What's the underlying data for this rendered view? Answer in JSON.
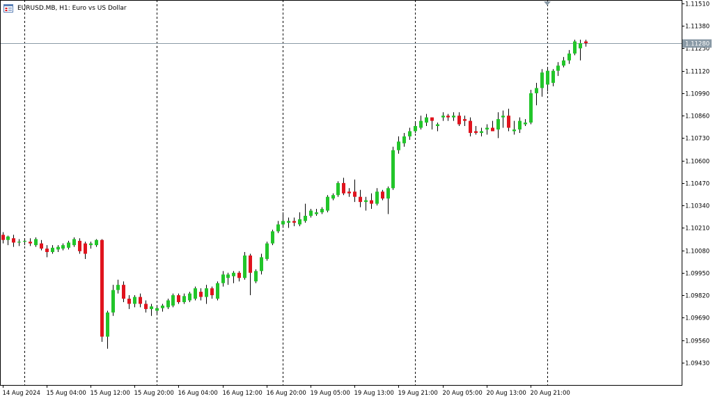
{
  "window": {
    "symbol_title": "EURUSD.MB, H1:  Euro vs US Dollar",
    "icon": "chart-window-icon"
  },
  "colors": {
    "background": "#ffffff",
    "bull": "#22c52a",
    "bear": "#e0141e",
    "grid_separator": "#000000",
    "price_line": "#8a9aa6",
    "price_label_bg": "#8a9aa6",
    "price_label_text": "#ffffff",
    "axis_text": "#000000"
  },
  "chart_data": {
    "type": "candlestick",
    "symbol": "EURUSD.MB",
    "timeframe": "H1",
    "description": "Euro vs US Dollar",
    "current_price": "1.11280",
    "y_ticks": [
      "1.11510",
      "1.11380",
      "1.11250",
      "1.11120",
      "1.10990",
      "1.10860",
      "1.10730",
      "1.10600",
      "1.10470",
      "1.10340",
      "1.10210",
      "1.10080",
      "1.09950",
      "1.09820",
      "1.09690",
      "1.09560",
      "1.09430"
    ],
    "ylim": [
      1.093,
      1.1153
    ],
    "x_ticks": [
      "14 Aug 2024",
      "15 Aug 04:00",
      "15 Aug 12:00",
      "15 Aug 20:00",
      "16 Aug 04:00",
      "16 Aug 12:00",
      "16 Aug 20:00",
      "19 Aug 05:00",
      "19 Aug 13:00",
      "19 Aug 21:00",
      "20 Aug 05:00",
      "20 Aug 13:00",
      "20 Aug 21:00"
    ],
    "session_separators": [
      4,
      28,
      51,
      75,
      99
    ],
    "candles": [
      {
        "o": 1.1017,
        "h": 1.10185,
        "l": 1.1012,
        "c": 1.1014
      },
      {
        "o": 1.1014,
        "h": 1.10165,
        "l": 1.1011,
        "c": 1.1016
      },
      {
        "o": 1.1015,
        "h": 1.1017,
        "l": 1.101,
        "c": 1.10125
      },
      {
        "o": 1.10125,
        "h": 1.10145,
        "l": 1.10105,
        "c": 1.1013
      },
      {
        "o": 1.1013,
        "h": 1.1015,
        "l": 1.1011,
        "c": 1.10135
      },
      {
        "o": 1.1013,
        "h": 1.1015,
        "l": 1.10105,
        "c": 1.1012
      },
      {
        "o": 1.1011,
        "h": 1.10155,
        "l": 1.101,
        "c": 1.10145
      },
      {
        "o": 1.1012,
        "h": 1.1014,
        "l": 1.1008,
        "c": 1.1009
      },
      {
        "o": 1.1009,
        "h": 1.1011,
        "l": 1.1004,
        "c": 1.1007
      },
      {
        "o": 1.1007,
        "h": 1.1011,
        "l": 1.1006,
        "c": 1.10095
      },
      {
        "o": 1.10085,
        "h": 1.1011,
        "l": 1.1007,
        "c": 1.101
      },
      {
        "o": 1.1009,
        "h": 1.1012,
        "l": 1.1008,
        "c": 1.1011
      },
      {
        "o": 1.10095,
        "h": 1.10135,
        "l": 1.10085,
        "c": 1.10125
      },
      {
        "o": 1.1011,
        "h": 1.10155,
        "l": 1.101,
        "c": 1.10145
      },
      {
        "o": 1.10135,
        "h": 1.1015,
        "l": 1.1006,
        "c": 1.10075
      },
      {
        "o": 1.1012,
        "h": 1.1013,
        "l": 1.1003,
        "c": 1.1006
      },
      {
        "o": 1.1011,
        "h": 1.1013,
        "l": 1.1009,
        "c": 1.1012
      },
      {
        "o": 1.1011,
        "h": 1.10145,
        "l": 1.101,
        "c": 1.1014
      },
      {
        "o": 1.1014,
        "h": 1.10145,
        "l": 1.0955,
        "c": 1.0958
      },
      {
        "o": 1.0958,
        "h": 1.0973,
        "l": 1.0951,
        "c": 1.0972
      },
      {
        "o": 1.0972,
        "h": 1.0988,
        "l": 1.097,
        "c": 1.0985
      },
      {
        "o": 1.0985,
        "h": 1.0991,
        "l": 1.0983,
        "c": 1.0988
      },
      {
        "o": 1.0988,
        "h": 1.099,
        "l": 1.0978,
        "c": 1.098
      },
      {
        "o": 1.098,
        "h": 1.0982,
        "l": 1.0974,
        "c": 1.0977
      },
      {
        "o": 1.0977,
        "h": 1.0982,
        "l": 1.0975,
        "c": 1.0981
      },
      {
        "o": 1.0981,
        "h": 1.0983,
        "l": 1.0975,
        "c": 1.0977
      },
      {
        "o": 1.0977,
        "h": 1.0979,
        "l": 1.0972,
        "c": 1.0974
      },
      {
        "o": 1.0974,
        "h": 1.0977,
        "l": 1.097,
        "c": 1.09755
      },
      {
        "o": 1.0973,
        "h": 1.0976,
        "l": 1.0971,
        "c": 1.09745
      },
      {
        "o": 1.09745,
        "h": 1.0977,
        "l": 1.09725,
        "c": 1.0976
      },
      {
        "o": 1.0975,
        "h": 1.098,
        "l": 1.0974,
        "c": 1.0979
      },
      {
        "o": 1.0976,
        "h": 1.0983,
        "l": 1.0975,
        "c": 1.0982
      },
      {
        "o": 1.0982,
        "h": 1.0983,
        "l": 1.0977,
        "c": 1.0978
      },
      {
        "o": 1.0978,
        "h": 1.0983,
        "l": 1.0977,
        "c": 1.09815
      },
      {
        "o": 1.0979,
        "h": 1.0984,
        "l": 1.0978,
        "c": 1.0983
      },
      {
        "o": 1.098,
        "h": 1.0987,
        "l": 1.0979,
        "c": 1.0986
      },
      {
        "o": 1.0984,
        "h": 1.0986,
        "l": 1.0979,
        "c": 1.0981
      },
      {
        "o": 1.0981,
        "h": 1.0988,
        "l": 1.0977,
        "c": 1.0986
      },
      {
        "o": 1.0986,
        "h": 1.0987,
        "l": 1.098,
        "c": 1.0982
      },
      {
        "o": 1.098,
        "h": 1.099,
        "l": 1.0979,
        "c": 1.0989
      },
      {
        "o": 1.0989,
        "h": 1.0996,
        "l": 1.0987,
        "c": 1.0994
      },
      {
        "o": 1.0992,
        "h": 1.0995,
        "l": 1.0988,
        "c": 1.0994
      },
      {
        "o": 1.0993,
        "h": 1.0996,
        "l": 1.0989,
        "c": 1.0995
      },
      {
        "o": 1.0995,
        "h": 1.0996,
        "l": 1.099,
        "c": 1.0992
      },
      {
        "o": 1.0992,
        "h": 1.1007,
        "l": 1.0991,
        "c": 1.1005
      },
      {
        "o": 1.1005,
        "h": 1.1006,
        "l": 1.0982,
        "c": 1.0995
      },
      {
        "o": 1.099,
        "h": 1.0997,
        "l": 1.0989,
        "c": 1.0996
      },
      {
        "o": 1.0996,
        "h": 1.1006,
        "l": 1.0994,
        "c": 1.1004
      },
      {
        "o": 1.1003,
        "h": 1.1013,
        "l": 1.1002,
        "c": 1.1012
      },
      {
        "o": 1.1012,
        "h": 1.102,
        "l": 1.1011,
        "c": 1.1019
      },
      {
        "o": 1.1019,
        "h": 1.1025,
        "l": 1.1018,
        "c": 1.1023
      },
      {
        "o": 1.1023,
        "h": 1.103,
        "l": 1.1021,
        "c": 1.1025
      },
      {
        "o": 1.1024,
        "h": 1.1027,
        "l": 1.1021,
        "c": 1.1025
      },
      {
        "o": 1.1025,
        "h": 1.1027,
        "l": 1.1022,
        "c": 1.1024
      },
      {
        "o": 1.1023,
        "h": 1.103,
        "l": 1.1022,
        "c": 1.1026
      },
      {
        "o": 1.1025,
        "h": 1.1035,
        "l": 1.1024,
        "c": 1.1028
      },
      {
        "o": 1.1028,
        "h": 1.1032,
        "l": 1.1027,
        "c": 1.1031
      },
      {
        "o": 1.1029,
        "h": 1.1032,
        "l": 1.1028,
        "c": 1.103
      },
      {
        "o": 1.103,
        "h": 1.1033,
        "l": 1.1029,
        "c": 1.1032
      },
      {
        "o": 1.1031,
        "h": 1.104,
        "l": 1.103,
        "c": 1.1039
      },
      {
        "o": 1.1038,
        "h": 1.1041,
        "l": 1.1037,
        "c": 1.104
      },
      {
        "o": 1.104,
        "h": 1.1048,
        "l": 1.1039,
        "c": 1.1047
      },
      {
        "o": 1.1047,
        "h": 1.105,
        "l": 1.104,
        "c": 1.1041
      },
      {
        "o": 1.1042,
        "h": 1.1044,
        "l": 1.1039,
        "c": 1.1041
      },
      {
        "o": 1.1042,
        "h": 1.1049,
        "l": 1.1036,
        "c": 1.1039
      },
      {
        "o": 1.1039,
        "h": 1.1043,
        "l": 1.1033,
        "c": 1.1036
      },
      {
        "o": 1.1036,
        "h": 1.1039,
        "l": 1.1031,
        "c": 1.1037
      },
      {
        "o": 1.1037,
        "h": 1.1041,
        "l": 1.1032,
        "c": 1.1035
      },
      {
        "o": 1.1035,
        "h": 1.1044,
        "l": 1.1034,
        "c": 1.1042
      },
      {
        "o": 1.1042,
        "h": 1.1043,
        "l": 1.1037,
        "c": 1.1038
      },
      {
        "o": 1.1038,
        "h": 1.1045,
        "l": 1.1029,
        "c": 1.1044
      },
      {
        "o": 1.1044,
        "h": 1.1068,
        "l": 1.1043,
        "c": 1.1066
      },
      {
        "o": 1.1066,
        "h": 1.1074,
        "l": 1.1064,
        "c": 1.1071
      },
      {
        "o": 1.107,
        "h": 1.1076,
        "l": 1.1068,
        "c": 1.1074
      },
      {
        "o": 1.1074,
        "h": 1.1079,
        "l": 1.1072,
        "c": 1.1077
      },
      {
        "o": 1.1077,
        "h": 1.1082,
        "l": 1.1076,
        "c": 1.108
      },
      {
        "o": 1.1079,
        "h": 1.1086,
        "l": 1.1078,
        "c": 1.1083
      },
      {
        "o": 1.1082,
        "h": 1.1087,
        "l": 1.108,
        "c": 1.1085
      },
      {
        "o": 1.1085,
        "h": 1.1085,
        "l": 1.1078,
        "c": 1.1083
      },
      {
        "o": 1.108,
        "h": 1.1082,
        "l": 1.1077,
        "c": 1.1081
      },
      {
        "o": 1.1085,
        "h": 1.1088,
        "l": 1.1083,
        "c": 1.1086
      },
      {
        "o": 1.1086,
        "h": 1.1087,
        "l": 1.1083,
        "c": 1.1085
      },
      {
        "o": 1.1085,
        "h": 1.1088,
        "l": 1.1083,
        "c": 1.1086
      },
      {
        "o": 1.1086,
        "h": 1.1088,
        "l": 1.108,
        "c": 1.1081
      },
      {
        "o": 1.1084,
        "h": 1.1086,
        "l": 1.108,
        "c": 1.1083
      },
      {
        "o": 1.1083,
        "h": 1.1085,
        "l": 1.1074,
        "c": 1.1076
      },
      {
        "o": 1.1077,
        "h": 1.108,
        "l": 1.1075,
        "c": 1.1076
      },
      {
        "o": 1.1076,
        "h": 1.1079,
        "l": 1.1074,
        "c": 1.1077
      },
      {
        "o": 1.1078,
        "h": 1.1081,
        "l": 1.1075,
        "c": 1.1079
      },
      {
        "o": 1.1079,
        "h": 1.1083,
        "l": 1.1077,
        "c": 1.1077
      },
      {
        "o": 1.1078,
        "h": 1.1088,
        "l": 1.1073,
        "c": 1.1084
      },
      {
        "o": 1.1085,
        "h": 1.1089,
        "l": 1.1079,
        "c": 1.1086
      },
      {
        "o": 1.1086,
        "h": 1.109,
        "l": 1.1077,
        "c": 1.1079
      },
      {
        "o": 1.1077,
        "h": 1.1083,
        "l": 1.1075,
        "c": 1.1078
      },
      {
        "o": 1.1078,
        "h": 1.1085,
        "l": 1.1076,
        "c": 1.1083
      },
      {
        "o": 1.1081,
        "h": 1.1084,
        "l": 1.108,
        "c": 1.1082
      },
      {
        "o": 1.1082,
        "h": 1.1101,
        "l": 1.1081,
        "c": 1.1099
      },
      {
        "o": 1.1099,
        "h": 1.1105,
        "l": 1.1092,
        "c": 1.1102
      },
      {
        "o": 1.1102,
        "h": 1.1113,
        "l": 1.1097,
        "c": 1.1111
      },
      {
        "o": 1.1104,
        "h": 1.1114,
        "l": 1.11,
        "c": 1.1112
      },
      {
        "o": 1.1105,
        "h": 1.1113,
        "l": 1.1103,
        "c": 1.1112
      },
      {
        "o": 1.1112,
        "h": 1.1117,
        "l": 1.1109,
        "c": 1.1115
      },
      {
        "o": 1.1115,
        "h": 1.112,
        "l": 1.1114,
        "c": 1.1118
      },
      {
        "o": 1.1118,
        "h": 1.1124,
        "l": 1.1116,
        "c": 1.1122
      },
      {
        "o": 1.1122,
        "h": 1.113,
        "l": 1.1121,
        "c": 1.1129
      },
      {
        "o": 1.1125,
        "h": 1.113,
        "l": 1.1118,
        "c": 1.1128
      },
      {
        "o": 1.1129,
        "h": 1.113,
        "l": 1.1126,
        "c": 1.1128
      }
    ]
  }
}
